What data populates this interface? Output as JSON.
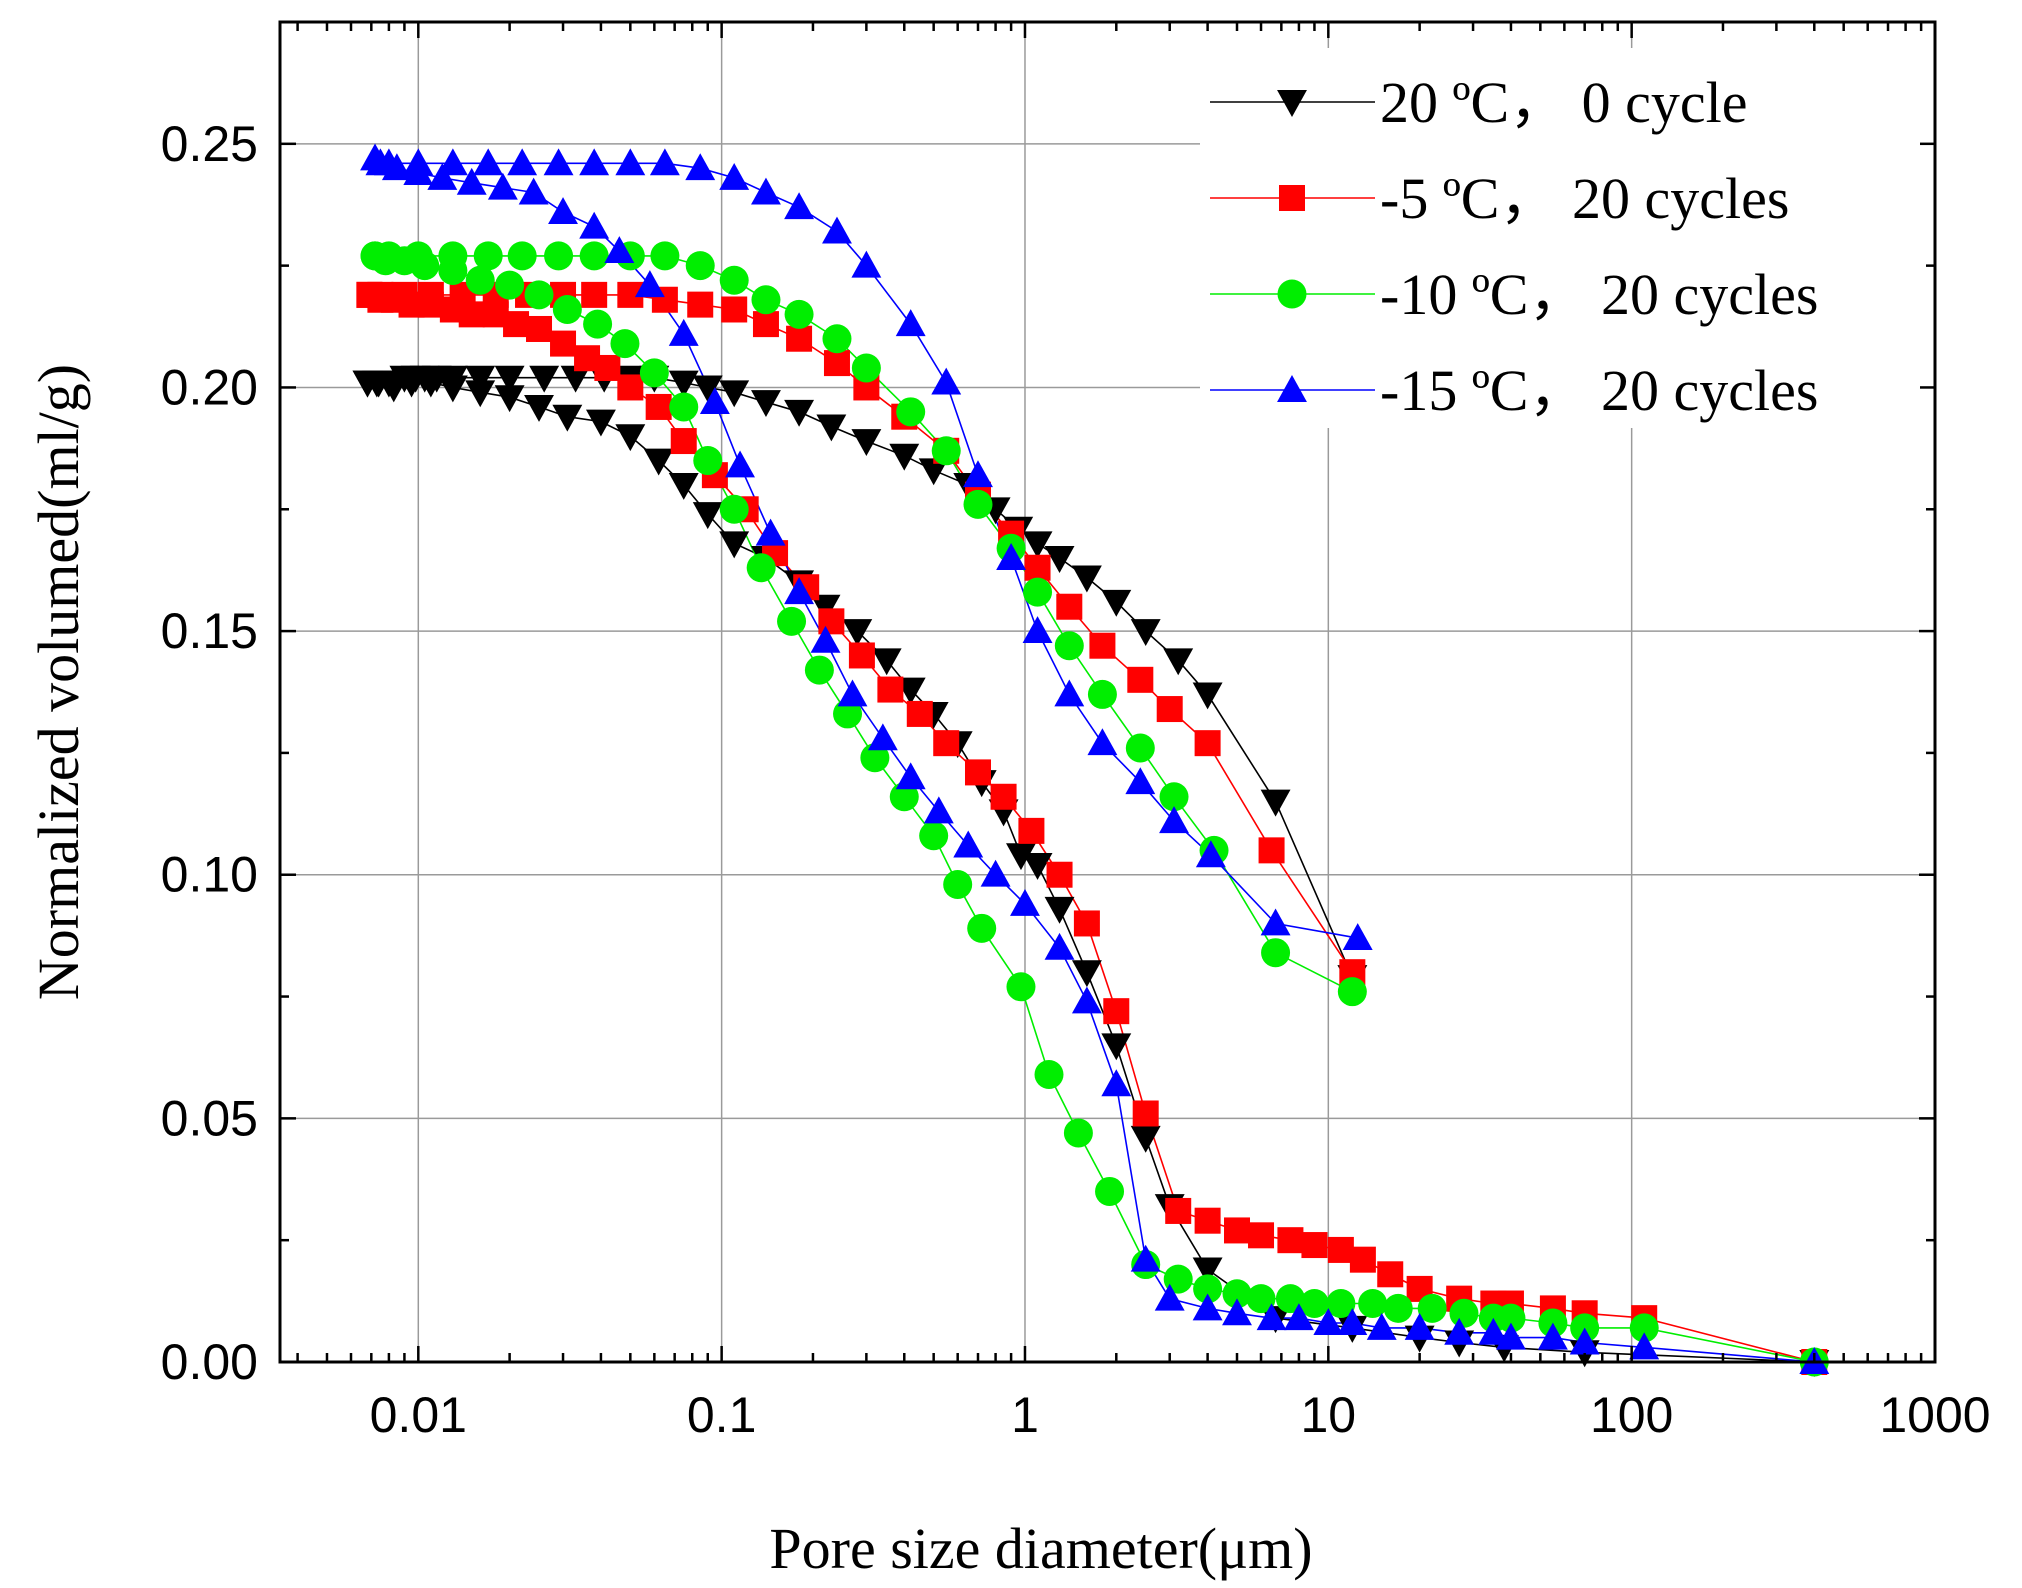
{
  "chart_data": {
    "type": "scatter",
    "title": "",
    "xlabel": "Pore size diameter(μm)",
    "ylabel": "Normalized volumed(ml/g)",
    "xscale": "log",
    "xlim": [
      0.0035,
      1000
    ],
    "ylim": [
      0,
      0.275
    ],
    "xticks": [
      0.01,
      0.1,
      1,
      10,
      100,
      1000
    ],
    "xtick_labels": [
      "0.01",
      "0.1",
      "1",
      "10",
      "100",
      "1000"
    ],
    "yticks": [
      0.0,
      0.05,
      0.1,
      0.15,
      0.2,
      0.25
    ],
    "ytick_labels": [
      "0.00",
      "0.05",
      "0.10",
      "0.15",
      "0.20",
      "0.25"
    ],
    "grid": true,
    "legend_position": "top-right",
    "series": [
      {
        "name": "20 ºC， 0 cycle",
        "color": "#000000",
        "marker": "triangle-down",
        "intrusion": {
          "x": [
            400,
            70,
            38,
            27,
            20,
            12,
            6.7,
            4,
            3,
            2.5,
            2,
            1.6,
            1.3,
            1.1,
            0.97,
            0.85,
            0.72,
            0.6,
            0.5,
            0.42,
            0.35,
            0.28,
            0.22,
            0.18,
            0.14,
            0.11,
            0.09,
            0.075,
            0.062,
            0.05,
            0.04,
            0.031,
            0.025,
            0.02,
            0.016,
            0.013,
            0.011,
            0.0095,
            0.0083,
            0.0074,
            0.0068
          ],
          "y": [
            0.0,
            0.002,
            0.003,
            0.004,
            0.005,
            0.007,
            0.009,
            0.019,
            0.032,
            0.046,
            0.065,
            0.08,
            0.093,
            0.102,
            0.104,
            0.113,
            0.119,
            0.127,
            0.133,
            0.138,
            0.144,
            0.15,
            0.155,
            0.16,
            0.165,
            0.168,
            0.174,
            0.18,
            0.185,
            0.19,
            0.193,
            0.194,
            0.196,
            0.198,
            0.199,
            0.2,
            0.201,
            0.201,
            0.2,
            0.201,
            0.201
          ]
        },
        "extrusion": {
          "x": [
            0.0068,
            0.0073,
            0.008,
            0.009,
            0.0098,
            0.0105,
            0.0115,
            0.013,
            0.016,
            0.02,
            0.026,
            0.033,
            0.041,
            0.05,
            0.06,
            0.075,
            0.09,
            0.11,
            0.14,
            0.18,
            0.23,
            0.3,
            0.4,
            0.5,
            0.65,
            0.8,
            0.95,
            1.1,
            1.3,
            1.6,
            2,
            2.5,
            3.2,
            4,
            6.7,
            12
          ],
          "y": [
            0.201,
            0.201,
            0.201,
            0.202,
            0.202,
            0.202,
            0.202,
            0.202,
            0.202,
            0.202,
            0.202,
            0.202,
            0.202,
            0.202,
            0.202,
            0.201,
            0.2,
            0.199,
            0.197,
            0.195,
            0.192,
            0.189,
            0.186,
            0.183,
            0.18,
            0.175,
            0.171,
            0.168,
            0.165,
            0.161,
            0.156,
            0.15,
            0.144,
            0.137,
            0.115,
            0.079
          ]
        }
      },
      {
        "name": "-5 ºC， 20 cycles",
        "color": "#ff0000",
        "marker": "square",
        "intrusion": {
          "x": [
            400,
            110,
            70,
            55,
            40,
            35,
            27,
            20,
            16,
            13,
            11,
            9,
            7.5,
            6,
            5,
            4,
            3.2,
            2.5,
            2,
            1.6,
            1.3,
            1.05,
            0.85,
            0.7,
            0.55,
            0.45,
            0.36,
            0.29,
            0.23,
            0.19,
            0.15,
            0.12,
            0.095,
            0.075,
            0.062,
            0.05,
            0.042,
            0.036,
            0.03,
            0.025,
            0.021,
            0.018,
            0.015,
            0.013,
            0.011,
            0.0095,
            0.0083,
            0.0075,
            0.0069
          ],
          "y": [
            0.0,
            0.009,
            0.01,
            0.011,
            0.012,
            0.012,
            0.013,
            0.015,
            0.018,
            0.021,
            0.023,
            0.024,
            0.025,
            0.026,
            0.027,
            0.029,
            0.031,
            0.051,
            0.072,
            0.09,
            0.1,
            0.109,
            0.116,
            0.121,
            0.127,
            0.133,
            0.138,
            0.145,
            0.152,
            0.159,
            0.166,
            0.175,
            0.182,
            0.189,
            0.196,
            0.2,
            0.204,
            0.206,
            0.209,
            0.212,
            0.213,
            0.215,
            0.215,
            0.216,
            0.217,
            0.217,
            0.218,
            0.218,
            0.219
          ]
        },
        "extrusion": {
          "x": [
            0.0069,
            0.0075,
            0.009,
            0.011,
            0.014,
            0.018,
            0.023,
            0.03,
            0.038,
            0.05,
            0.065,
            0.085,
            0.11,
            0.14,
            0.18,
            0.24,
            0.3,
            0.4,
            0.55,
            0.7,
            0.9,
            1.1,
            1.4,
            1.8,
            2.4,
            3,
            4,
            6.5,
            12
          ],
          "y": [
            0.219,
            0.219,
            0.219,
            0.219,
            0.219,
            0.219,
            0.219,
            0.219,
            0.219,
            0.219,
            0.218,
            0.217,
            0.216,
            0.213,
            0.21,
            0.205,
            0.2,
            0.194,
            0.187,
            0.178,
            0.17,
            0.163,
            0.155,
            0.147,
            0.14,
            0.134,
            0.127,
            0.105,
            0.08
          ]
        }
      },
      {
        "name": "-10 ºC， 20 cycles",
        "color": "#00ee00",
        "marker": "circle",
        "intrusion": {
          "x": [
            400,
            110,
            70,
            55,
            40,
            35,
            28,
            22,
            17,
            14,
            11,
            9,
            7.5,
            6,
            5,
            4,
            3.2,
            2.5,
            1.9,
            1.5,
            1.2,
            0.97,
            0.72,
            0.6,
            0.5,
            0.4,
            0.32,
            0.26,
            0.21,
            0.17,
            0.135,
            0.11,
            0.09,
            0.075,
            0.06,
            0.048,
            0.039,
            0.031,
            0.025,
            0.02,
            0.016,
            0.013,
            0.0105,
            0.009,
            0.0078,
            0.0072
          ],
          "y": [
            0.0,
            0.007,
            0.007,
            0.008,
            0.009,
            0.009,
            0.01,
            0.011,
            0.011,
            0.012,
            0.012,
            0.012,
            0.013,
            0.013,
            0.014,
            0.015,
            0.017,
            0.02,
            0.035,
            0.047,
            0.059,
            0.077,
            0.089,
            0.098,
            0.108,
            0.116,
            0.124,
            0.133,
            0.142,
            0.152,
            0.163,
            0.175,
            0.185,
            0.196,
            0.203,
            0.209,
            0.213,
            0.216,
            0.219,
            0.221,
            0.222,
            0.224,
            0.225,
            0.226,
            0.226,
            0.227
          ]
        },
        "extrusion": {
          "x": [
            0.0072,
            0.008,
            0.01,
            0.013,
            0.017,
            0.022,
            0.029,
            0.038,
            0.05,
            0.065,
            0.085,
            0.11,
            0.14,
            0.18,
            0.24,
            0.3,
            0.42,
            0.55,
            0.7,
            0.9,
            1.1,
            1.4,
            1.8,
            2.4,
            3.1,
            4.2,
            6.7,
            12
          ],
          "y": [
            0.227,
            0.227,
            0.227,
            0.227,
            0.227,
            0.227,
            0.227,
            0.227,
            0.227,
            0.227,
            0.225,
            0.222,
            0.218,
            0.215,
            0.21,
            0.204,
            0.195,
            0.187,
            0.176,
            0.167,
            0.158,
            0.147,
            0.137,
            0.126,
            0.116,
            0.105,
            0.084,
            0.076
          ]
        }
      },
      {
        "name": "-15 ºC， 20 cycles",
        "color": "#0000ff",
        "marker": "triangle-up",
        "intrusion": {
          "x": [
            400,
            110,
            70,
            55,
            40,
            35,
            27,
            20,
            15,
            12,
            10,
            8,
            6.5,
            5,
            4,
            3,
            2.5,
            2,
            1.6,
            1.3,
            1.0,
            0.8,
            0.65,
            0.52,
            0.42,
            0.34,
            0.27,
            0.22,
            0.18,
            0.145,
            0.115,
            0.095,
            0.075,
            0.058,
            0.046,
            0.038,
            0.03,
            0.024,
            0.019,
            0.015,
            0.012,
            0.01,
            0.0085,
            0.0075
          ],
          "y": [
            0.0,
            0.003,
            0.004,
            0.005,
            0.005,
            0.006,
            0.006,
            0.007,
            0.007,
            0.008,
            0.008,
            0.009,
            0.009,
            0.01,
            0.011,
            0.013,
            0.021,
            0.057,
            0.074,
            0.085,
            0.094,
            0.1,
            0.106,
            0.113,
            0.12,
            0.128,
            0.137,
            0.148,
            0.158,
            0.17,
            0.184,
            0.197,
            0.211,
            0.221,
            0.228,
            0.233,
            0.236,
            0.24,
            0.241,
            0.242,
            0.243,
            0.244,
            0.245,
            0.246
          ]
        },
        "extrusion": {
          "x": [
            0.0072,
            0.008,
            0.01,
            0.013,
            0.017,
            0.022,
            0.029,
            0.038,
            0.05,
            0.065,
            0.085,
            0.11,
            0.14,
            0.18,
            0.24,
            0.3,
            0.42,
            0.55,
            0.7,
            0.9,
            1.1,
            1.4,
            1.8,
            2.4,
            3.1,
            4.1,
            6.7,
            12.5
          ],
          "y": [
            0.247,
            0.246,
            0.246,
            0.246,
            0.246,
            0.246,
            0.246,
            0.246,
            0.246,
            0.246,
            0.245,
            0.243,
            0.24,
            0.237,
            0.232,
            0.225,
            0.213,
            0.201,
            0.182,
            0.165,
            0.15,
            0.137,
            0.127,
            0.119,
            0.111,
            0.104,
            0.09,
            0.087
          ]
        }
      }
    ]
  }
}
